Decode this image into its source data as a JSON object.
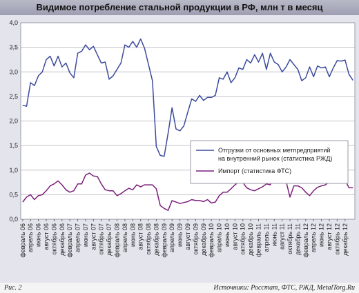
{
  "title": "Видимое потребление стальной продукции в РФ, млн т в месяц",
  "figure_label": "Рис. 2",
  "source": "Источники: Росстат, ФТС, РЖД, MetalTorg.Ru",
  "colors": {
    "series_1": "#3b4a9c",
    "series_2": "#7a1e7a",
    "grid": "#c4c4cc",
    "plot_bg": "#ffffff",
    "frame_bg": "#e3e4ec"
  },
  "chart_data": {
    "type": "line",
    "title": "Видимое потребление стальной продукции в РФ, млн т в месяц",
    "xlabel": "",
    "ylabel": "",
    "ylim": [
      0,
      4
    ],
    "yticks": [
      "0,0",
      "0,5",
      "1,0",
      "1,5",
      "2,0",
      "2,5",
      "3,0",
      "3,5",
      "4,0"
    ],
    "grid": true,
    "legend_position": "right",
    "x_start": "2006-02",
    "x_labels": [
      "февраль 06",
      "апрель 06",
      "июнь 06",
      "август 06",
      "октябрь 06",
      "декабрь 06",
      "февраль 07",
      "апрель 07",
      "июнь 07",
      "август 07",
      "октябрь 07",
      "декабрь 07",
      "февраль 08",
      "апрель 08",
      "июнь 08",
      "август 08",
      "октябрь 08",
      "декабрь 08",
      "февраль 09",
      "апрель 09",
      "июнь 09",
      "август 09",
      "октябрь 09",
      "декабрь 09",
      "февраль 10",
      "апрель 10",
      "июнь 10",
      "август 10",
      "октябрь 10",
      "декабрь 10",
      "февраль 11",
      "апрель 11",
      "июнь 11",
      "август 11",
      "октябрь 11",
      "декабрь 11",
      "февраль 12",
      "апрель 12",
      "июнь 12",
      "август 12",
      "октябрь 12",
      "декабрь 12"
    ],
    "series": [
      {
        "name": "Отгрузки от основных метпредприятий на внутренний рынок (статистика РЖД)",
        "values": [
          2.32,
          2.3,
          2.78,
          2.72,
          2.92,
          3.0,
          3.25,
          3.32,
          3.12,
          3.32,
          3.1,
          3.18,
          2.98,
          2.88,
          3.38,
          3.42,
          3.55,
          3.45,
          3.52,
          3.35,
          3.18,
          3.2,
          2.85,
          2.92,
          3.05,
          3.18,
          3.55,
          3.5,
          3.62,
          3.5,
          3.67,
          3.48,
          3.15,
          2.82,
          1.48,
          1.3,
          1.28,
          1.75,
          2.27,
          1.84,
          1.8,
          1.9,
          2.18,
          2.45,
          2.4,
          2.52,
          2.42,
          2.48,
          2.48,
          2.52,
          2.88,
          2.85,
          3.0,
          2.78,
          2.88,
          3.08,
          3.05,
          3.25,
          3.18,
          3.35,
          3.2,
          3.38,
          3.05,
          3.38,
          3.2,
          3.15,
          3.0,
          3.1,
          3.25,
          3.15,
          3.05,
          2.82,
          2.88,
          3.1,
          2.9,
          3.12,
          3.08,
          3.1,
          2.9,
          3.08,
          3.23,
          3.22,
          3.24,
          2.95,
          2.83
        ]
      },
      {
        "name": "Импорт (статистика ФТС)",
        "values": [
          0.35,
          0.45,
          0.5,
          0.4,
          0.48,
          0.5,
          0.58,
          0.68,
          0.72,
          0.78,
          0.7,
          0.6,
          0.55,
          0.58,
          0.72,
          0.72,
          0.9,
          0.94,
          0.88,
          0.87,
          0.72,
          0.6,
          0.58,
          0.58,
          0.48,
          0.52,
          0.58,
          0.63,
          0.6,
          0.7,
          0.66,
          0.7,
          0.7,
          0.7,
          0.62,
          0.28,
          0.22,
          0.18,
          0.38,
          0.35,
          0.32,
          0.34,
          0.36,
          0.4,
          0.38,
          0.38,
          0.36,
          0.4,
          0.33,
          0.35,
          0.48,
          0.55,
          0.55,
          0.62,
          0.7,
          0.76,
          0.75,
          0.64,
          0.6,
          0.58,
          0.62,
          0.66,
          0.72,
          0.7,
          0.95,
          0.96,
          0.78,
          0.77,
          0.45,
          0.68,
          0.68,
          0.64,
          0.55,
          0.48,
          0.58,
          0.65,
          0.68,
          0.7,
          0.76,
          0.76,
          0.82,
          0.75,
          0.8,
          0.64,
          0.64
        ]
      }
    ]
  }
}
